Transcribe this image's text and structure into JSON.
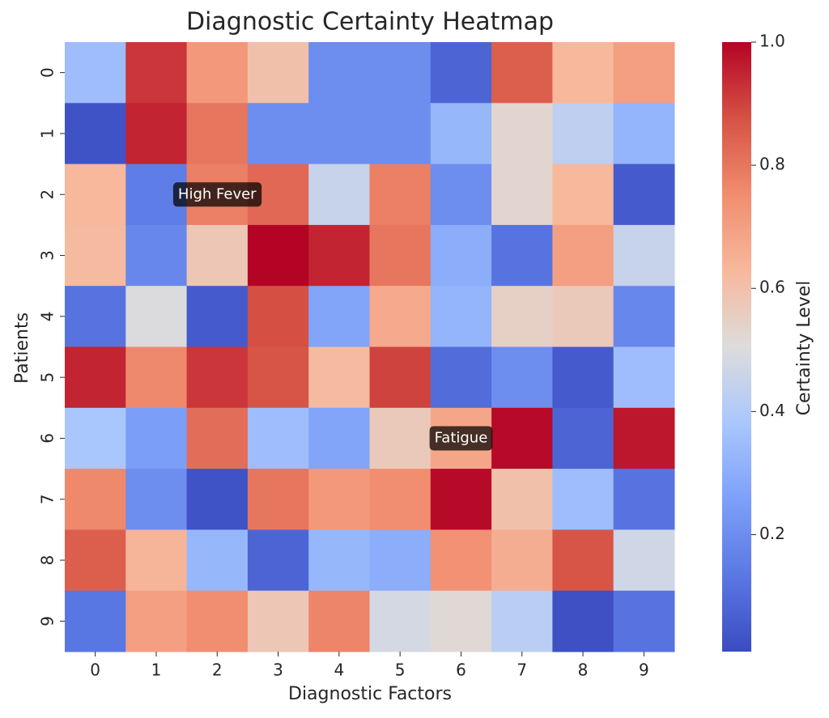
{
  "chart_data": {
    "type": "heatmap",
    "title": "Diagnostic Certainty Heatmap",
    "x_label": "Diagnostic Factors",
    "y_label": "Patients",
    "categories": [
      "0",
      "1",
      "2",
      "3",
      "4",
      "5",
      "6",
      "7",
      "8",
      "9"
    ],
    "rows": [
      "0",
      "1",
      "2",
      "3",
      "4",
      "5",
      "6",
      "7",
      "8",
      "9"
    ],
    "values": [
      [
        0.35,
        0.92,
        0.72,
        0.6,
        0.2,
        0.2,
        0.08,
        0.85,
        0.63,
        0.7
      ],
      [
        0.03,
        0.95,
        0.8,
        0.2,
        0.2,
        0.2,
        0.33,
        0.53,
        0.43,
        0.32
      ],
      [
        0.63,
        0.15,
        0.78,
        0.83,
        0.45,
        0.78,
        0.2,
        0.53,
        0.63,
        0.05
      ],
      [
        0.62,
        0.18,
        0.58,
        1.0,
        0.95,
        0.8,
        0.3,
        0.12,
        0.7,
        0.45
      ],
      [
        0.12,
        0.5,
        0.05,
        0.88,
        0.27,
        0.67,
        0.32,
        0.55,
        0.57,
        0.18
      ],
      [
        0.95,
        0.76,
        0.92,
        0.87,
        0.62,
        0.9,
        0.1,
        0.2,
        0.05,
        0.35
      ],
      [
        0.38,
        0.25,
        0.82,
        0.35,
        0.27,
        0.57,
        0.68,
        0.99,
        0.08,
        0.97
      ],
      [
        0.76,
        0.2,
        0.03,
        0.8,
        0.72,
        0.75,
        0.99,
        0.6,
        0.35,
        0.12
      ],
      [
        0.85,
        0.64,
        0.33,
        0.08,
        0.33,
        0.3,
        0.74,
        0.66,
        0.87,
        0.47
      ],
      [
        0.13,
        0.7,
        0.75,
        0.58,
        0.77,
        0.48,
        0.52,
        0.42,
        0.02,
        0.12
      ]
    ],
    "colormap": "coolwarm",
    "clim": [
      0.01,
      1.0
    ],
    "colorbar_label": "Certainty Level",
    "colorbar_ticks": [
      0.2,
      0.4,
      0.6,
      0.8,
      {
        "value": 1.0,
        "label": "1.0"
      }
    ],
    "annotations": [
      {
        "text": "High Fever",
        "x": 2,
        "y": 2
      },
      {
        "text": "Fatigue",
        "x": 6,
        "y": 6
      }
    ]
  }
}
